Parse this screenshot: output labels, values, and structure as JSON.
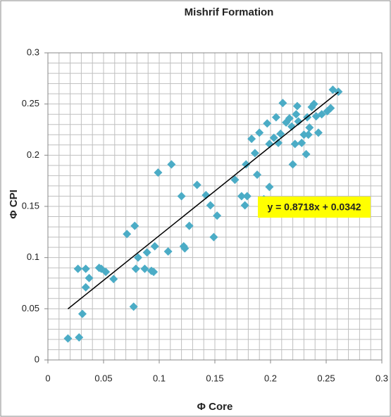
{
  "chart_data": {
    "type": "scatter",
    "title": "Mishrif Formation",
    "x_label": "Φ Core",
    "y_label": "Φ CPI",
    "x": [
      0.018,
      0.028,
      0.027,
      0.034,
      0.031,
      0.034,
      0.037,
      0.046,
      0.048,
      0.052,
      0.059,
      0.071,
      0.078,
      0.077,
      0.079,
      0.081,
      0.087,
      0.089,
      0.093,
      0.095,
      0.096,
      0.099,
      0.108,
      0.111,
      0.12,
      0.122,
      0.123,
      0.127,
      0.134,
      0.142,
      0.146,
      0.149,
      0.152,
      0.168,
      0.174,
      0.177,
      0.179,
      0.178,
      0.183,
      0.186,
      0.188,
      0.19,
      0.194,
      0.197,
      0.199,
      0.199,
      0.203,
      0.205,
      0.207,
      0.209,
      0.211,
      0.214,
      0.217,
      0.219,
      0.22,
      0.222,
      0.223,
      0.225,
      0.228,
      0.23,
      0.232,
      0.233,
      0.234,
      0.235,
      0.237,
      0.239,
      0.241,
      0.243,
      0.246,
      0.254,
      0.256,
      0.261,
      0.251,
      0.224
    ],
    "values": [
      0.021,
      0.022,
      0.089,
      0.089,
      0.045,
      0.071,
      0.08,
      0.09,
      0.089,
      0.086,
      0.079,
      0.123,
      0.131,
      0.052,
      0.089,
      0.1,
      0.089,
      0.105,
      0.087,
      0.086,
      0.111,
      0.183,
      0.106,
      0.191,
      0.16,
      0.111,
      0.109,
      0.131,
      0.171,
      0.161,
      0.151,
      0.12,
      0.141,
      0.176,
      0.16,
      0.151,
      0.16,
      0.191,
      0.216,
      0.202,
      0.181,
      0.222,
      0.157,
      0.231,
      0.169,
      0.211,
      0.217,
      0.237,
      0.212,
      0.221,
      0.251,
      0.232,
      0.236,
      0.228,
      0.191,
      0.211,
      0.24,
      0.233,
      0.212,
      0.22,
      0.201,
      0.237,
      0.22,
      0.227,
      0.247,
      0.25,
      0.238,
      0.222,
      0.24,
      0.246,
      0.264,
      0.262,
      0.243,
      0.248
    ],
    "color": "#4bacc6",
    "xlim": [
      0,
      0.3
    ],
    "xticks": [
      0,
      0.05,
      0.1,
      0.15,
      0.2,
      0.25,
      0.3
    ],
    "ylim": [
      0,
      0.3
    ],
    "yticks": [
      0,
      0.05,
      0.1,
      0.15,
      0.2,
      0.25,
      0.3
    ],
    "grid": true,
    "trendline": {
      "label": "y = 0.8718x + 0.0342",
      "slope": 0.8718,
      "intercept": 0.0342,
      "color": "#000000",
      "label_background": "#ffff00"
    }
  }
}
